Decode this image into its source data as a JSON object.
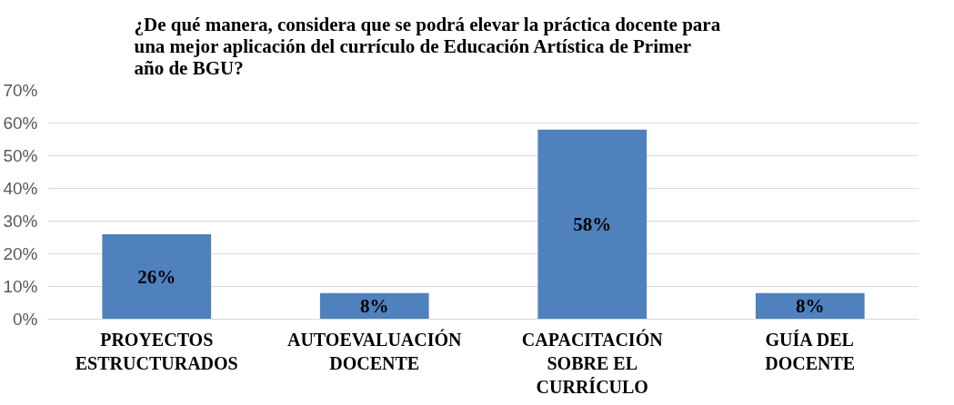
{
  "chart_data": {
    "type": "bar",
    "title": "¿De qué manera, considera que se podrá elevar la práctica docente para una mejor aplicación del currículo de Educación Artística de Primer año de BGU?",
    "categories": [
      "PROYECTOS ESTRUCTURADOS",
      "AUTOEVALUACIÓN DOCENTE",
      "CAPACITACIÓN SOBRE EL CURRÍCULO",
      "GUÍA DEL DOCENTE"
    ],
    "values": [
      26,
      8,
      58,
      8
    ],
    "color": "#4f81bd",
    "value_labels": [
      "26%",
      "8%",
      "58%",
      "8%"
    ],
    "ylim": [
      0,
      70
    ],
    "yticks": [
      {
        "value": 0,
        "label": "0%"
      },
      {
        "value": 10,
        "label": "10%"
      },
      {
        "value": 20,
        "label": "20%"
      },
      {
        "value": 30,
        "label": "30%"
      },
      {
        "value": 40,
        "label": "40%"
      },
      {
        "value": 50,
        "label": "50%"
      },
      {
        "value": 60,
        "label": "60%"
      },
      {
        "value": 70,
        "label": "70%"
      }
    ],
    "grid": "y"
  }
}
